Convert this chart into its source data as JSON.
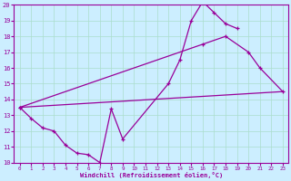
{
  "xlabel": "Windchill (Refroidissement éolien,°C)",
  "bg_color": "#cceeff",
  "line_color": "#990099",
  "grid_color": "#aaddcc",
  "xlim": [
    -0.5,
    23.5
  ],
  "ylim": [
    10,
    20
  ],
  "yticks": [
    10,
    11,
    12,
    13,
    14,
    15,
    16,
    17,
    18,
    19,
    20
  ],
  "xticks": [
    0,
    1,
    2,
    3,
    4,
    5,
    6,
    7,
    8,
    9,
    10,
    11,
    12,
    13,
    14,
    15,
    16,
    17,
    18,
    19,
    20,
    21,
    22,
    23
  ],
  "line1_x": [
    0,
    1,
    2,
    3,
    4,
    5,
    6,
    7,
    8,
    9,
    13,
    14,
    15,
    16,
    17,
    18,
    19
  ],
  "line1_y": [
    13.5,
    12.8,
    12.2,
    12.0,
    11.1,
    10.6,
    10.5,
    10.0,
    13.4,
    11.5,
    15.0,
    16.5,
    19.0,
    20.2,
    19.5,
    18.8,
    18.5
  ],
  "line2_x": [
    0,
    16,
    18,
    20,
    21,
    23
  ],
  "line2_y": [
    13.5,
    17.5,
    18.0,
    17.0,
    16.0,
    14.5
  ],
  "line3_x": [
    0,
    23
  ],
  "line3_y": [
    13.5,
    14.5
  ]
}
